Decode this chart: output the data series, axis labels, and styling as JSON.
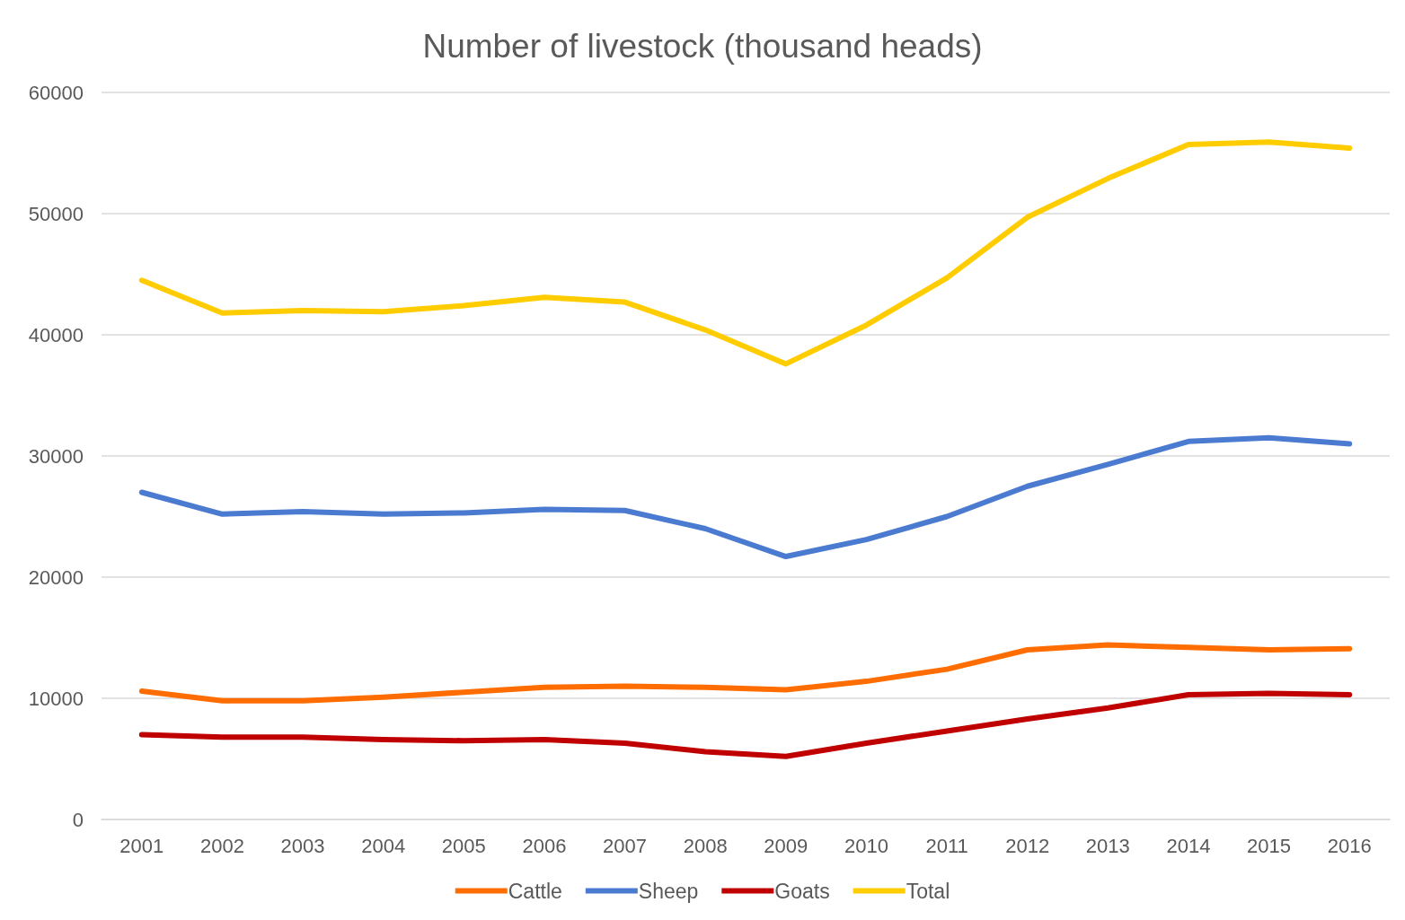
{
  "chart_data": {
    "type": "line",
    "title": "Number of livestock (thousand heads)",
    "categories": [
      "2001",
      "2002",
      "2003",
      "2004",
      "2005",
      "2006",
      "2007",
      "2008",
      "2009",
      "2010",
      "2011",
      "2012",
      "2013",
      "2014",
      "2015",
      "2016"
    ],
    "series": [
      {
        "name": "Cattle",
        "color": "#ff6d00",
        "values": [
          10600,
          9800,
          9800,
          10100,
          10500,
          10900,
          11000,
          10900,
          10700,
          11400,
          12400,
          14000,
          14400,
          14200,
          14000,
          14100
        ]
      },
      {
        "name": "Sheep",
        "color": "#4a7bd0",
        "values": [
          27000,
          25200,
          25400,
          25200,
          25300,
          25600,
          25500,
          24000,
          21700,
          23100,
          25000,
          27500,
          29300,
          31200,
          31500,
          31000
        ]
      },
      {
        "name": "Goats",
        "color": "#c00000",
        "values": [
          7000,
          6800,
          6800,
          6600,
          6500,
          6600,
          6300,
          5600,
          5200,
          6300,
          7300,
          8300,
          9200,
          10300,
          10400,
          10300
        ]
      },
      {
        "name": "Total",
        "color": "#ffcc00",
        "values": [
          44500,
          41800,
          42000,
          41900,
          42400,
          43100,
          42700,
          40400,
          37600,
          40800,
          44700,
          49700,
          52900,
          55700,
          55900,
          55400
        ]
      }
    ],
    "ylim": [
      0,
      60000
    ],
    "yticks": [
      0,
      10000,
      20000,
      30000,
      40000,
      50000,
      60000
    ],
    "grid": "y",
    "legend": "bottom",
    "marker": "none",
    "line_style": "solid"
  }
}
